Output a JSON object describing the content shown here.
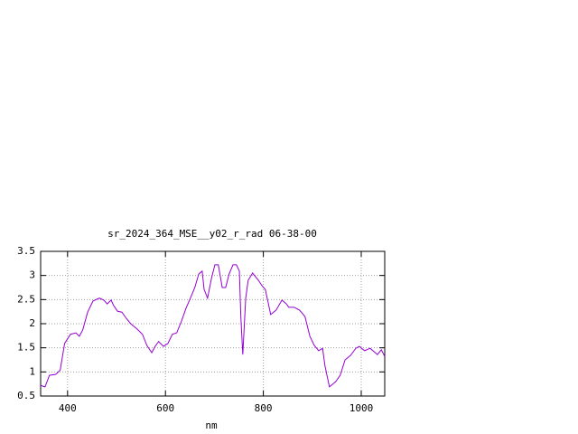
{
  "chart_data": {
    "type": "line",
    "title": "sr_2024_364_MSE__y02_r_rad 06-38-00",
    "x_label": "nm",
    "x": [
      345,
      354,
      363,
      376,
      385,
      394,
      406,
      417,
      424,
      431,
      441,
      452,
      465,
      474,
      481,
      489,
      494,
      502,
      511,
      520,
      529,
      542,
      553,
      562,
      572,
      579,
      586,
      596,
      605,
      614,
      623,
      633,
      642,
      651,
      660,
      668,
      675,
      679,
      686,
      694,
      701,
      708,
      716,
      723,
      730,
      738,
      745,
      751,
      754,
      758,
      764,
      769,
      778,
      790,
      797,
      804,
      810,
      815,
      826,
      838,
      847,
      852,
      863,
      874,
      885,
      895,
      904,
      913,
      921,
      926,
      935,
      948,
      957,
      967,
      978,
      989,
      996,
      1007,
      1018,
      1026,
      1033,
      1041,
      1048
    ],
    "series": [
      {
        "color": "#9400d3",
        "values": [
          0.72,
          0.69,
          0.93,
          0.95,
          1.04,
          1.59,
          1.78,
          1.81,
          1.74,
          1.87,
          2.24,
          2.47,
          2.53,
          2.49,
          2.41,
          2.49,
          2.38,
          2.26,
          2.24,
          2.11,
          2.0,
          1.89,
          1.78,
          1.55,
          1.4,
          1.53,
          1.63,
          1.53,
          1.59,
          1.78,
          1.81,
          2.06,
          2.32,
          2.53,
          2.75,
          3.03,
          3.09,
          2.71,
          2.53,
          2.94,
          3.22,
          3.22,
          2.75,
          2.75,
          3.03,
          3.22,
          3.22,
          3.09,
          2.15,
          1.36,
          2.53,
          2.9,
          3.05,
          2.9,
          2.79,
          2.71,
          2.43,
          2.19,
          2.28,
          2.49,
          2.41,
          2.34,
          2.34,
          2.28,
          2.15,
          1.74,
          1.55,
          1.44,
          1.49,
          1.12,
          0.69,
          0.8,
          0.93,
          1.25,
          1.34,
          1.49,
          1.53,
          1.44,
          1.49,
          1.42,
          1.36,
          1.46,
          1.32
        ]
      }
    ],
    "xlim": [
      345,
      1048
    ],
    "ylim": [
      0.5,
      3.5
    ],
    "xticks": [
      400,
      600,
      800,
      1000
    ],
    "yticks": [
      0.5,
      1,
      1.5,
      2,
      2.5,
      3,
      3.5
    ],
    "grid": true
  }
}
